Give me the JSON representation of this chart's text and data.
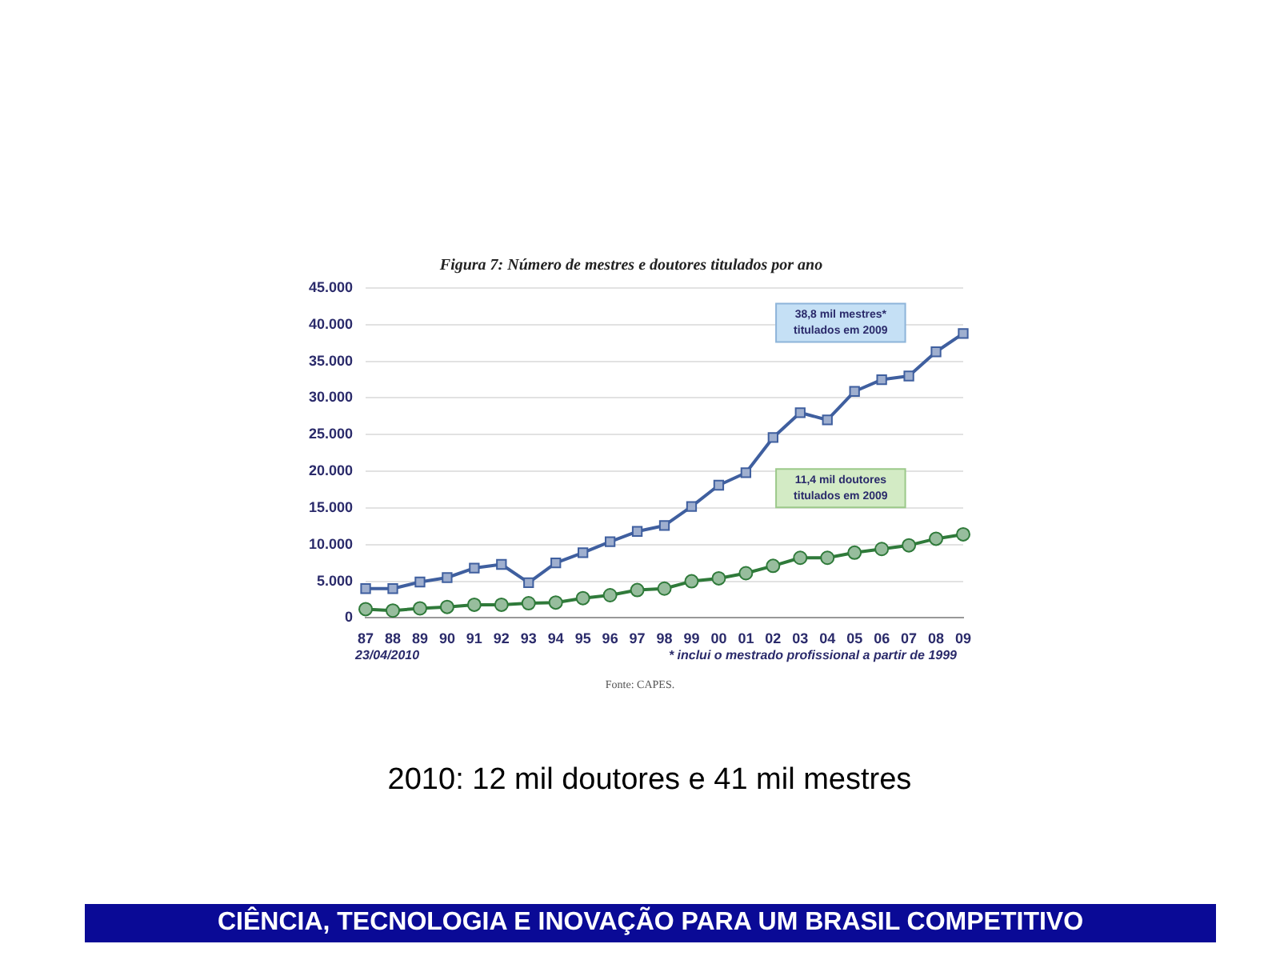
{
  "chart_data": {
    "type": "line",
    "title": "Figura 7: Número de mestres e doutores titulados por ano",
    "categories": [
      "87",
      "88",
      "89",
      "90",
      "91",
      "92",
      "93",
      "94",
      "95",
      "96",
      "97",
      "98",
      "99",
      "00",
      "01",
      "02",
      "03",
      "04",
      "05",
      "06",
      "07",
      "08",
      "09"
    ],
    "series": [
      {
        "name": null,
        "color": "#3f5f9f",
        "marker": "square",
        "values": [
          4000,
          4000,
          4900,
          5500,
          6800,
          7300,
          4800,
          7500,
          8900,
          10400,
          11800,
          12600,
          15200,
          18100,
          19800,
          24600,
          28000,
          27000,
          30900,
          32500,
          33000,
          36300,
          38800
        ]
      },
      {
        "name": null,
        "color": "#2f7a3a",
        "marker": "circle",
        "values": [
          1200,
          1000,
          1300,
          1500,
          1800,
          1800,
          2000,
          2100,
          2700,
          3100,
          3800,
          4000,
          5000,
          5400,
          6100,
          7100,
          8200,
          8200,
          8900,
          9400,
          9900,
          10800,
          11400
        ]
      }
    ],
    "ylim": [
      0,
      45000
    ],
    "yticks": [
      {
        "value": 0,
        "label": "0"
      },
      {
        "value": 5000,
        "label": "5.000"
      },
      {
        "value": 10000,
        "label": "10.000"
      },
      {
        "value": 15000,
        "label": "15.000"
      },
      {
        "value": 20000,
        "label": "20.000"
      },
      {
        "value": 25000,
        "label": "25.000"
      },
      {
        "value": 30000,
        "label": "30.000"
      },
      {
        "value": 35000,
        "label": "35.000"
      },
      {
        "value": 40000,
        "label": "40.000"
      },
      {
        "value": 45000,
        "label": "45.000"
      }
    ],
    "grid": "y",
    "legend": false,
    "line_style": "solid",
    "annotations": [
      "38,8 mil mestres*\ntitulados em 2009",
      "11,4 mil doutores\ntitulados em 2009",
      "23/04/2010",
      "* inclui o mestrado profissional a partir de 1999",
      "Fonte: CAPES.",
      "2010: 12 mil doutores e 41 mil mestres",
      "CIÊNCIA, TECNOLOGIA E INOVAÇÃO PARA UM BRASIL COMPETITIVO"
    ]
  }
}
